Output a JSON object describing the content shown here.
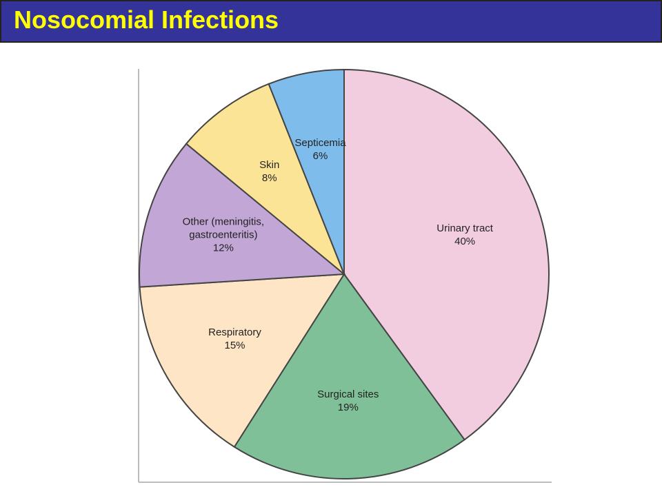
{
  "header": {
    "title": "Nosocomial Infections"
  },
  "chart_data": {
    "type": "pie",
    "categories": [
      "Urinary tract",
      "Surgical sites",
      "Respiratory",
      "Other (meningitis, gastroenteritis)",
      "Skin",
      "Septicemia"
    ],
    "values": [
      40,
      19,
      15,
      12,
      8,
      6
    ],
    "value_labels": [
      "40%",
      "19%",
      "15%",
      "12%",
      "8%",
      "6%"
    ],
    "colors": [
      "#f2cde0",
      "#80c098",
      "#fde5c5",
      "#c2a6d6",
      "#fce496",
      "#7ebcec"
    ]
  }
}
